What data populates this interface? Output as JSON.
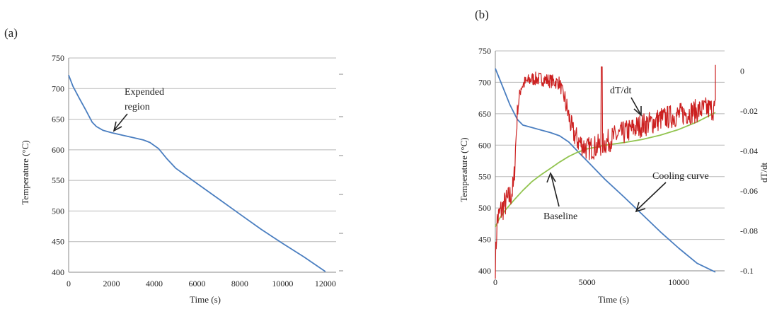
{
  "panels": [
    {
      "panel_label": "(a)",
      "annotations": [
        {
          "name": "annotation-expended-region",
          "lines": [
            "Expended",
            "region"
          ]
        }
      ]
    },
    {
      "panel_label": "(b)",
      "annotations": [
        {
          "name": "annotation-dtdt",
          "lines": [
            "dT/dt"
          ]
        },
        {
          "name": "annotation-cooling-curve",
          "lines": [
            "Cooling curve"
          ]
        },
        {
          "name": "annotation-baseline",
          "lines": [
            "Baseline"
          ]
        }
      ]
    }
  ],
  "colors": {
    "cooling": "#4a7ec0",
    "baseline": "#92c450",
    "derivative": "#cc2020",
    "grid": "#b8b8b8"
  },
  "chart_data": [
    {
      "type": "line",
      "xlabel": "Time (s)",
      "ylabel": "Temperature (°C)",
      "xlim": [
        0,
        12500
      ],
      "ylim": [
        400,
        750
      ],
      "xticks": [
        0,
        2000,
        4000,
        6000,
        8000,
        10000,
        12000
      ],
      "yticks": [
        400,
        450,
        500,
        550,
        600,
        650,
        700,
        750
      ],
      "grid": true,
      "series": [
        {
          "key": "cooling",
          "x": [
            0,
            200,
            500,
            800,
            1100,
            1300,
            1600,
            2000,
            2500,
            3000,
            3500,
            3800,
            4200,
            4600,
            5000,
            6000,
            7000,
            8000,
            9000,
            10000,
            11000,
            12000
          ],
          "y": [
            722,
            704,
            684,
            665,
            645,
            638,
            632,
            628,
            624,
            620,
            616,
            612,
            602,
            585,
            570,
            545,
            520,
            495,
            470,
            447,
            425,
            401
          ]
        }
      ]
    },
    {
      "type": "line",
      "xlabel": "Time (s)",
      "ylabel": "Temperature (°C)",
      "y2label": "dT/dt",
      "xlim": [
        0,
        12500
      ],
      "ylim": [
        400,
        750
      ],
      "y2lim": [
        -0.1,
        0.01
      ],
      "xticks": [
        0,
        5000,
        10000
      ],
      "yticks": [
        400,
        450,
        500,
        550,
        600,
        650,
        700,
        750
      ],
      "y2ticks": [
        0,
        -0.02,
        -0.04,
        -0.06,
        -0.08,
        -0.1
      ],
      "grid": true,
      "series": [
        {
          "key": "cooling",
          "axis": "left",
          "x": [
            0,
            400,
            800,
            1200,
            1500,
            2000,
            2500,
            3000,
            3500,
            4000,
            4500,
            5000,
            6000,
            7000,
            8000,
            9000,
            10000,
            11000,
            12000
          ],
          "y": [
            722,
            693,
            664,
            641,
            632,
            628,
            624,
            620,
            615,
            605,
            590,
            575,
            545,
            518,
            490,
            462,
            436,
            412,
            398
          ]
        },
        {
          "key": "baseline",
          "axis": "left",
          "x": [
            0,
            200,
            500,
            1000,
            1500,
            2000,
            2500,
            3000,
            3500,
            4000,
            4500,
            5000,
            5500,
            6000,
            7000,
            8000,
            9000,
            10000,
            11000,
            12000
          ],
          "y": [
            470,
            482,
            495,
            512,
            528,
            542,
            553,
            563,
            573,
            582,
            589,
            594,
            597,
            600,
            604,
            609,
            616,
            625,
            637,
            652
          ]
        },
        {
          "key": "derivative",
          "axis": "right",
          "x": [
            0,
            100,
            300,
            500,
            800,
            1000,
            1200,
            1400,
            1600,
            2000,
            2500,
            3000,
            3500,
            3800,
            4200,
            4500,
            5000,
            5500,
            6000,
            6500,
            7000,
            7500,
            8000,
            8500,
            9000,
            9500,
            10000,
            10500,
            11000,
            11500,
            12000
          ],
          "y": [
            -0.097,
            -0.075,
            -0.07,
            -0.067,
            -0.063,
            -0.058,
            -0.02,
            -0.008,
            -0.006,
            -0.004,
            -0.004,
            -0.005,
            -0.006,
            -0.015,
            -0.03,
            -0.035,
            -0.039,
            -0.038,
            -0.036,
            -0.033,
            -0.031,
            -0.029,
            -0.027,
            -0.026,
            -0.024,
            -0.023,
            -0.022,
            -0.021,
            -0.02,
            -0.019,
            -0.019
          ]
        }
      ]
    }
  ]
}
